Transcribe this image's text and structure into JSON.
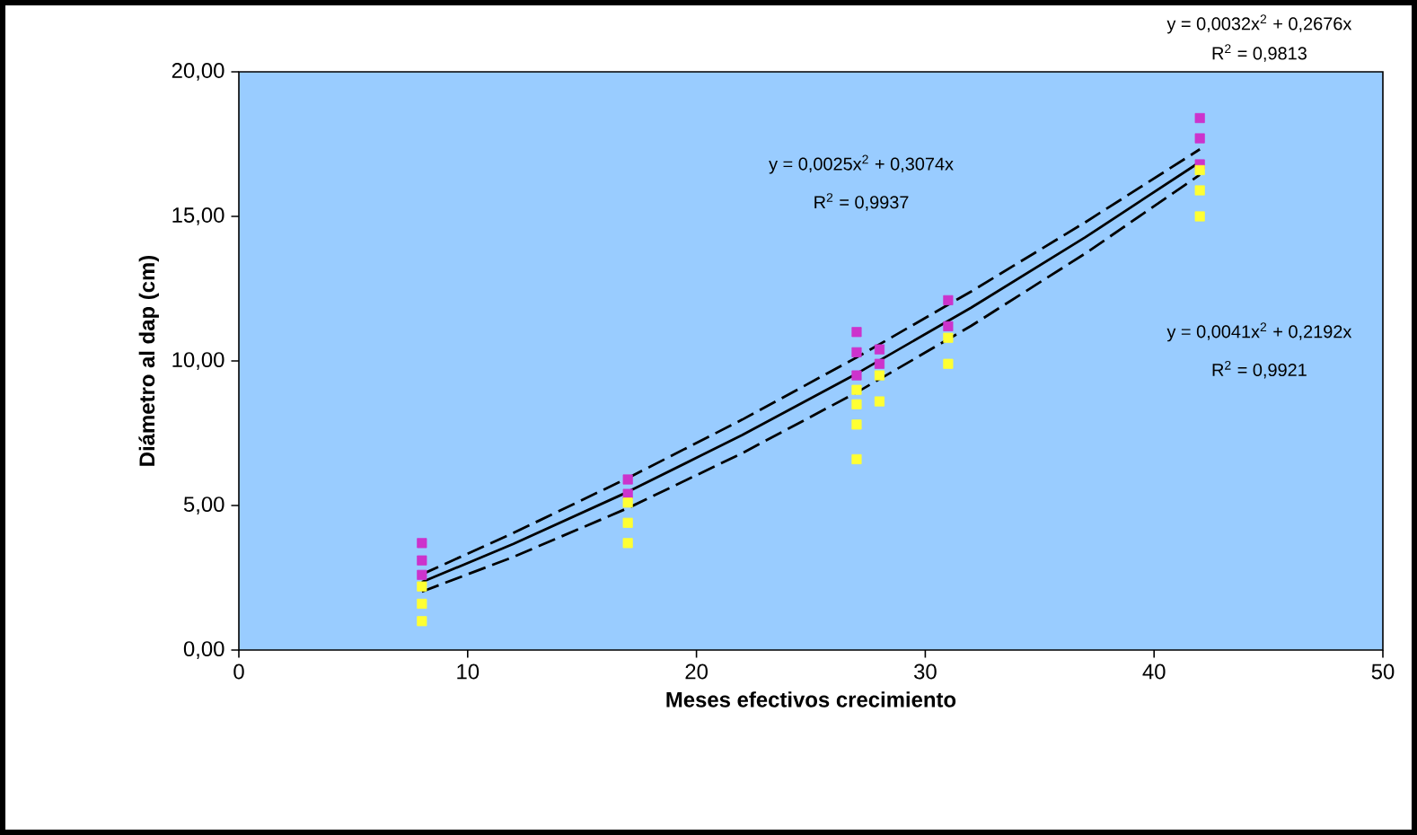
{
  "chart_data": {
    "type": "scatter",
    "xlabel": "Meses efectivos  crecimiento",
    "ylabel": "Diámetro al dap (cm)",
    "xlim": [
      0,
      50
    ],
    "xticks": [
      0,
      10,
      20,
      30,
      40,
      50
    ],
    "ylim": [
      0,
      20
    ],
    "yticks": [
      {
        "value": 0,
        "label": "0,00"
      },
      {
        "value": 5,
        "label": "5,00"
      },
      {
        "value": 10,
        "label": "10,00"
      },
      {
        "value": 15,
        "label": "15,00"
      },
      {
        "value": 20,
        "label": "20,00"
      }
    ],
    "grid": false,
    "series": [
      {
        "marker": "square",
        "color": "#cc33cc",
        "x": [
          8,
          8,
          8,
          17,
          17,
          27,
          27,
          27,
          28,
          28,
          31,
          31,
          42,
          42,
          42
        ],
        "values": [
          2.6,
          3.1,
          3.7,
          5.4,
          5.9,
          9.5,
          10.3,
          11.0,
          9.9,
          10.4,
          11.2,
          12.1,
          16.8,
          17.7,
          18.4
        ]
      },
      {
        "marker": "square",
        "color": "#ffff33",
        "x": [
          8,
          8,
          8,
          17,
          17,
          17,
          27,
          27,
          27,
          27,
          28,
          28,
          31,
          31,
          42,
          42,
          42
        ],
        "values": [
          1.0,
          1.6,
          2.2,
          3.7,
          4.4,
          5.1,
          6.6,
          7.8,
          8.5,
          9.0,
          8.6,
          9.5,
          9.9,
          10.8,
          15.0,
          15.9,
          16.6
        ]
      },
      {
        "type": "line",
        "marker": "none",
        "line_style": "dashed",
        "color": "#000000",
        "x": [
          8,
          12,
          17,
          22,
          27,
          32,
          37,
          42
        ],
        "values": [
          2.62,
          4.05,
          5.95,
          7.97,
          10.12,
          12.4,
          14.8,
          17.32
        ]
      },
      {
        "type": "line",
        "marker": "none",
        "line_style": "solid",
        "color": "#000000",
        "x": [
          8,
          12,
          17,
          22,
          27,
          32,
          37,
          42
        ],
        "values": [
          2.35,
          3.67,
          5.47,
          7.44,
          9.56,
          11.84,
          14.28,
          16.88
        ]
      },
      {
        "type": "line",
        "marker": "none",
        "line_style": "dashed",
        "color": "#000000",
        "x": [
          8,
          12,
          17,
          22,
          27,
          32,
          37,
          42
        ],
        "values": [
          2.02,
          3.22,
          4.91,
          6.81,
          8.91,
          11.21,
          13.72,
          16.44
        ]
      }
    ],
    "annotations": [
      "y = 0,0032x$^{2}$ + 0,2676x",
      "R$^{2}$ = 0,9813",
      "y = 0,0025x$^{2}$ + 0,3074x",
      "R$^{2}$ = 0,9937",
      "y = 0,0041x$^{2}$ + 0,2192x",
      "R$^{2}$ = 0,9921"
    ]
  }
}
